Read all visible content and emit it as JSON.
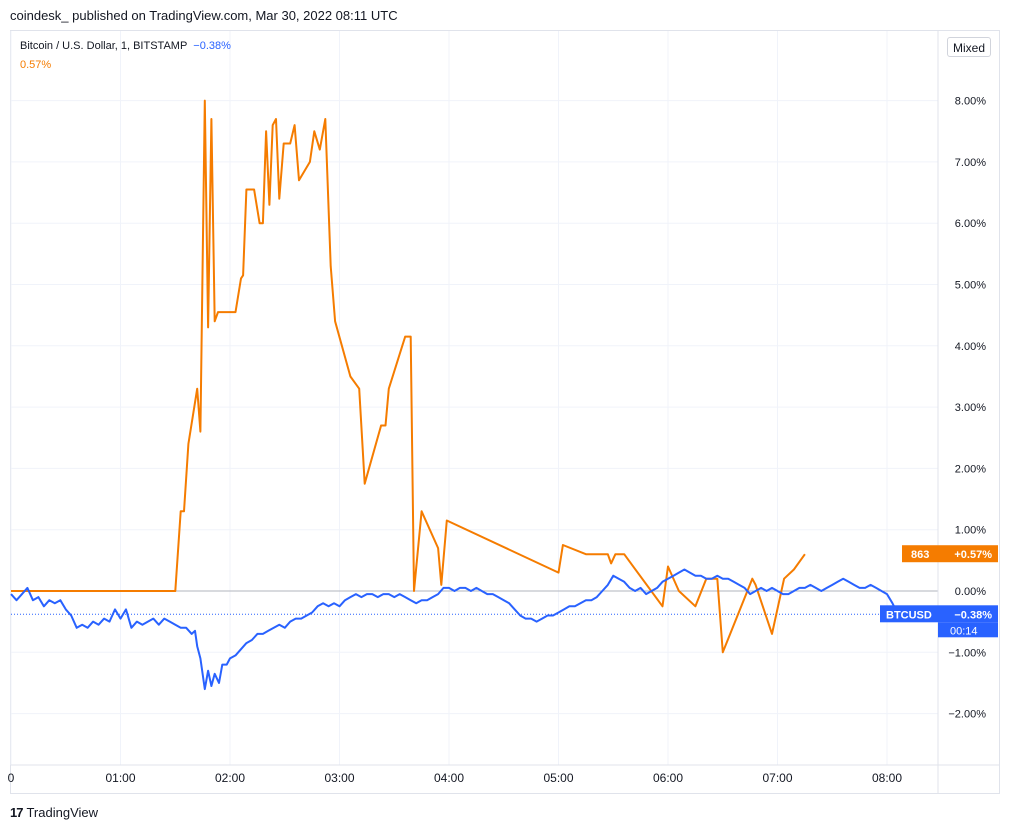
{
  "header": {
    "publish_line": "coindesk_ published on TradingView.com, Mar 30, 2022 08:11 UTC"
  },
  "legend": {
    "symbol": "Bitcoin / U.S. Dollar, 1, BITSTAMP",
    "symbol_change": "−0.38%",
    "series2_change": "0.57%"
  },
  "toolbar": {
    "scale_mode": "Mixed"
  },
  "footer": {
    "brand": "TradingView",
    "logo_mark": "17"
  },
  "colors": {
    "btc": "#2962ff",
    "orange": "#f57c00",
    "grid": "#f0f3fa",
    "axis_text": "#131722"
  },
  "labels": {
    "orange_badge_left": "863",
    "orange_badge_right": "+0.57%",
    "btc_badge_left": "BTCUSD",
    "btc_badge_right": "−0.38%",
    "btc_countdown": "00:14"
  },
  "chart_data": {
    "type": "line",
    "y_unit": "%",
    "ylim": [
      -2.8,
      9.0
    ],
    "yticks": [
      -2,
      -1,
      0,
      1,
      2,
      3,
      4,
      5,
      6,
      7,
      8
    ],
    "ytick_labels": [
      "−2.00%",
      "−1.00%",
      "0.00%",
      "1.00%",
      "2.00%",
      "3.00%",
      "4.00%",
      "5.00%",
      "6.00%",
      "7.00%",
      "8.00%"
    ],
    "xlim": [
      0,
      8.6
    ],
    "xticks": [
      0,
      1,
      2,
      3,
      4,
      5,
      6,
      7,
      8
    ],
    "xtick_labels": [
      "0",
      "01:00",
      "02:00",
      "03:00",
      "04:00",
      "05:00",
      "06:00",
      "07:00",
      "08:00"
    ],
    "grid": true,
    "series": [
      {
        "name": "863",
        "color": "#f57c00",
        "points": [
          [
            0.0,
            0.0
          ],
          [
            1.5,
            0.0
          ],
          [
            1.55,
            1.3
          ],
          [
            1.58,
            1.3
          ],
          [
            1.62,
            2.4
          ],
          [
            1.7,
            3.3
          ],
          [
            1.73,
            2.6
          ],
          [
            1.77,
            8.0
          ],
          [
            1.8,
            4.3
          ],
          [
            1.83,
            7.7
          ],
          [
            1.86,
            4.4
          ],
          [
            1.89,
            4.55
          ],
          [
            2.05,
            4.55
          ],
          [
            2.1,
            5.1
          ],
          [
            2.12,
            5.15
          ],
          [
            2.15,
            6.55
          ],
          [
            2.22,
            6.55
          ],
          [
            2.27,
            6.0
          ],
          [
            2.3,
            6.0
          ],
          [
            2.33,
            7.5
          ],
          [
            2.36,
            6.3
          ],
          [
            2.39,
            7.6
          ],
          [
            2.42,
            7.7
          ],
          [
            2.45,
            6.4
          ],
          [
            2.49,
            7.3
          ],
          [
            2.55,
            7.3
          ],
          [
            2.59,
            7.6
          ],
          [
            2.63,
            6.7
          ],
          [
            2.73,
            7.0
          ],
          [
            2.77,
            7.5
          ],
          [
            2.82,
            7.2
          ],
          [
            2.87,
            7.7
          ],
          [
            2.92,
            5.3
          ],
          [
            2.96,
            4.4
          ],
          [
            3.1,
            3.5
          ],
          [
            3.18,
            3.3
          ],
          [
            3.23,
            1.75
          ],
          [
            3.38,
            2.7
          ],
          [
            3.42,
            2.7
          ],
          [
            3.45,
            3.3
          ],
          [
            3.6,
            4.15
          ],
          [
            3.65,
            4.15
          ],
          [
            3.68,
            0.0
          ],
          [
            3.75,
            1.3
          ],
          [
            3.9,
            0.7
          ],
          [
            3.93,
            0.1
          ],
          [
            3.98,
            1.15
          ],
          [
            5.0,
            0.3
          ],
          [
            5.04,
            0.75
          ],
          [
            5.25,
            0.6
          ],
          [
            5.45,
            0.6
          ],
          [
            5.48,
            0.45
          ],
          [
            5.52,
            0.6
          ],
          [
            5.6,
            0.6
          ],
          [
            5.95,
            -0.25
          ],
          [
            6.0,
            0.4
          ],
          [
            6.1,
            0.0
          ],
          [
            6.25,
            -0.25
          ],
          [
            6.35,
            0.2
          ],
          [
            6.45,
            0.2
          ],
          [
            6.5,
            -1.0
          ],
          [
            6.77,
            0.2
          ],
          [
            6.8,
            0.1
          ],
          [
            6.95,
            -0.7
          ],
          [
            7.06,
            0.2
          ],
          [
            7.15,
            0.35
          ],
          [
            7.25,
            0.6
          ]
        ]
      },
      {
        "name": "BTCUSD",
        "color": "#2962ff",
        "points": [
          [
            0.0,
            -0.05
          ],
          [
            0.05,
            -0.15
          ],
          [
            0.1,
            -0.05
          ],
          [
            0.15,
            0.05
          ],
          [
            0.2,
            -0.15
          ],
          [
            0.25,
            -0.1
          ],
          [
            0.3,
            -0.25
          ],
          [
            0.35,
            -0.15
          ],
          [
            0.4,
            -0.2
          ],
          [
            0.45,
            -0.15
          ],
          [
            0.5,
            -0.3
          ],
          [
            0.55,
            -0.4
          ],
          [
            0.6,
            -0.6
          ],
          [
            0.65,
            -0.55
          ],
          [
            0.7,
            -0.6
          ],
          [
            0.75,
            -0.5
          ],
          [
            0.8,
            -0.55
          ],
          [
            0.85,
            -0.45
          ],
          [
            0.9,
            -0.5
          ],
          [
            0.95,
            -0.3
          ],
          [
            1.0,
            -0.45
          ],
          [
            1.05,
            -0.3
          ],
          [
            1.1,
            -0.6
          ],
          [
            1.15,
            -0.5
          ],
          [
            1.2,
            -0.55
          ],
          [
            1.25,
            -0.5
          ],
          [
            1.3,
            -0.45
          ],
          [
            1.35,
            -0.55
          ],
          [
            1.4,
            -0.45
          ],
          [
            1.45,
            -0.5
          ],
          [
            1.5,
            -0.55
          ],
          [
            1.55,
            -0.6
          ],
          [
            1.6,
            -0.6
          ],
          [
            1.65,
            -0.7
          ],
          [
            1.68,
            -0.65
          ],
          [
            1.7,
            -0.9
          ],
          [
            1.73,
            -1.1
          ],
          [
            1.77,
            -1.6
          ],
          [
            1.8,
            -1.3
          ],
          [
            1.83,
            -1.55
          ],
          [
            1.86,
            -1.35
          ],
          [
            1.9,
            -1.5
          ],
          [
            1.93,
            -1.2
          ],
          [
            1.97,
            -1.2
          ],
          [
            2.0,
            -1.1
          ],
          [
            2.05,
            -1.05
          ],
          [
            2.1,
            -0.95
          ],
          [
            2.15,
            -0.85
          ],
          [
            2.2,
            -0.8
          ],
          [
            2.25,
            -0.7
          ],
          [
            2.3,
            -0.7
          ],
          [
            2.35,
            -0.65
          ],
          [
            2.4,
            -0.6
          ],
          [
            2.45,
            -0.55
          ],
          [
            2.5,
            -0.6
          ],
          [
            2.55,
            -0.5
          ],
          [
            2.6,
            -0.45
          ],
          [
            2.65,
            -0.45
          ],
          [
            2.7,
            -0.4
          ],
          [
            2.75,
            -0.35
          ],
          [
            2.8,
            -0.25
          ],
          [
            2.85,
            -0.2
          ],
          [
            2.9,
            -0.25
          ],
          [
            2.95,
            -0.2
          ],
          [
            3.0,
            -0.25
          ],
          [
            3.05,
            -0.15
          ],
          [
            3.1,
            -0.1
          ],
          [
            3.15,
            -0.05
          ],
          [
            3.2,
            -0.1
          ],
          [
            3.25,
            -0.05
          ],
          [
            3.3,
            -0.05
          ],
          [
            3.35,
            -0.1
          ],
          [
            3.4,
            -0.05
          ],
          [
            3.45,
            -0.05
          ],
          [
            3.5,
            -0.1
          ],
          [
            3.55,
            -0.05
          ],
          [
            3.6,
            -0.1
          ],
          [
            3.65,
            -0.15
          ],
          [
            3.7,
            -0.2
          ],
          [
            3.75,
            -0.15
          ],
          [
            3.8,
            -0.15
          ],
          [
            3.85,
            -0.1
          ],
          [
            3.9,
            -0.05
          ],
          [
            3.95,
            0.05
          ],
          [
            4.0,
            0.05
          ],
          [
            4.05,
            0.0
          ],
          [
            4.1,
            0.05
          ],
          [
            4.15,
            0.05
          ],
          [
            4.2,
            0.0
          ],
          [
            4.25,
            0.05
          ],
          [
            4.3,
            0.0
          ],
          [
            4.35,
            -0.05
          ],
          [
            4.4,
            -0.05
          ],
          [
            4.45,
            -0.1
          ],
          [
            4.5,
            -0.15
          ],
          [
            4.55,
            -0.2
          ],
          [
            4.6,
            -0.3
          ],
          [
            4.65,
            -0.4
          ],
          [
            4.7,
            -0.45
          ],
          [
            4.75,
            -0.45
          ],
          [
            4.8,
            -0.5
          ],
          [
            4.85,
            -0.45
          ],
          [
            4.9,
            -0.4
          ],
          [
            4.95,
            -0.4
          ],
          [
            5.0,
            -0.35
          ],
          [
            5.05,
            -0.3
          ],
          [
            5.1,
            -0.25
          ],
          [
            5.15,
            -0.25
          ],
          [
            5.2,
            -0.2
          ],
          [
            5.25,
            -0.15
          ],
          [
            5.3,
            -0.15
          ],
          [
            5.35,
            -0.1
          ],
          [
            5.4,
            0.0
          ],
          [
            5.45,
            0.1
          ],
          [
            5.5,
            0.25
          ],
          [
            5.55,
            0.2
          ],
          [
            5.6,
            0.15
          ],
          [
            5.65,
            0.05
          ],
          [
            5.7,
            0.0
          ],
          [
            5.75,
            0.05
          ],
          [
            5.8,
            -0.05
          ],
          [
            5.85,
            0.0
          ],
          [
            5.9,
            0.05
          ],
          [
            5.95,
            0.15
          ],
          [
            6.0,
            0.2
          ],
          [
            6.05,
            0.25
          ],
          [
            6.1,
            0.3
          ],
          [
            6.15,
            0.35
          ],
          [
            6.2,
            0.3
          ],
          [
            6.25,
            0.25
          ],
          [
            6.3,
            0.25
          ],
          [
            6.35,
            0.2
          ],
          [
            6.4,
            0.2
          ],
          [
            6.45,
            0.25
          ],
          [
            6.5,
            0.2
          ],
          [
            6.55,
            0.2
          ],
          [
            6.6,
            0.15
          ],
          [
            6.65,
            0.1
          ],
          [
            6.7,
            0.05
          ],
          [
            6.75,
            -0.05
          ],
          [
            6.8,
            0.0
          ],
          [
            6.85,
            0.05
          ],
          [
            6.9,
            0.0
          ],
          [
            6.95,
            0.05
          ],
          [
            7.0,
            0.0
          ],
          [
            7.05,
            -0.05
          ],
          [
            7.1,
            -0.05
          ],
          [
            7.15,
            0.0
          ],
          [
            7.2,
            0.05
          ],
          [
            7.25,
            0.05
          ],
          [
            7.3,
            0.1
          ],
          [
            7.35,
            0.05
          ],
          [
            7.4,
            0.0
          ],
          [
            7.45,
            0.05
          ],
          [
            7.5,
            0.1
          ],
          [
            7.55,
            0.15
          ],
          [
            7.6,
            0.2
          ],
          [
            7.65,
            0.15
          ],
          [
            7.7,
            0.1
          ],
          [
            7.75,
            0.05
          ],
          [
            7.8,
            0.05
          ],
          [
            7.85,
            0.1
          ],
          [
            7.9,
            0.05
          ],
          [
            7.95,
            0.0
          ],
          [
            8.0,
            -0.05
          ],
          [
            8.05,
            -0.2
          ],
          [
            8.1,
            -0.38
          ]
        ]
      }
    ]
  }
}
